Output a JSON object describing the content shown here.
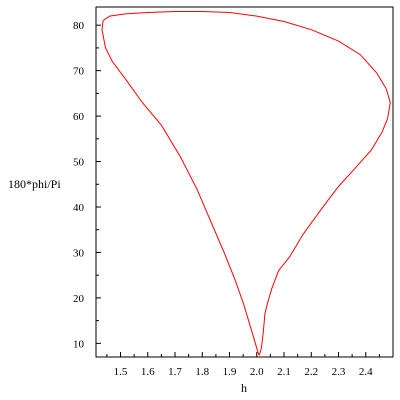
{
  "chart_data": {
    "type": "line",
    "title": "",
    "xlabel": "h",
    "ylabel": "180*phi/Pi",
    "xlim": [
      1.41,
      2.5
    ],
    "ylim": [
      7,
      84
    ],
    "xticks": [
      1.5,
      1.6,
      1.7,
      1.8,
      1.9,
      2.0,
      2.1,
      2.2,
      2.3,
      2.4
    ],
    "xticklabels": [
      "1.5",
      "1.6",
      "1.7",
      "1.8",
      "1.9",
      "2.0",
      "2.1",
      "2.2",
      "2.3",
      "2.4"
    ],
    "yticks": [
      10,
      20,
      30,
      40,
      50,
      60,
      70,
      80
    ],
    "yticklabels": [
      "10",
      "20",
      "30",
      "40",
      "50",
      "60",
      "70",
      "80"
    ],
    "grid": false,
    "line_color": "#ff0000",
    "series": [
      {
        "x": [
          2.007,
          1.99,
          1.97,
          1.95,
          1.92,
          1.88,
          1.83,
          1.78,
          1.72,
          1.65,
          1.58,
          1.52,
          1.47,
          1.445,
          1.432,
          1.436,
          1.46,
          1.52,
          1.6,
          1.7,
          1.8,
          1.9,
          2.0,
          2.1,
          2.2,
          2.3,
          2.38,
          2.44,
          2.475,
          2.49,
          2.48,
          2.46,
          2.42,
          2.36,
          2.3,
          2.24,
          2.17,
          2.12,
          2.08,
          2.055,
          2.04,
          2.03,
          2.024,
          2.017,
          2.01,
          2.007
        ],
        "y": [
          7.5,
          11,
          15,
          19,
          24,
          30,
          37,
          44,
          51,
          58,
          63,
          68,
          72,
          75,
          79,
          81,
          82,
          82.5,
          82.8,
          83,
          83,
          82.8,
          82,
          80.8,
          79,
          76.5,
          73.5,
          69.5,
          66,
          63,
          59.5,
          56.5,
          52.5,
          48.5,
          44.5,
          39.8,
          34,
          29,
          26,
          22,
          19,
          16.5,
          12.5,
          9,
          7.5,
          7.5
        ]
      }
    ]
  }
}
